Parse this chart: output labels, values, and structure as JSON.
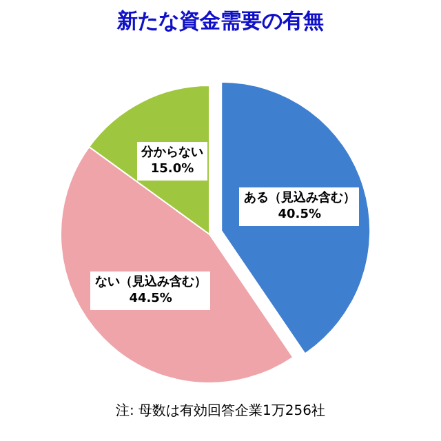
{
  "chart_data": {
    "type": "pie",
    "title": "新たな資金需要の有無",
    "categories": [
      "ある（見込み含む）",
      "ない（見込み含む）",
      "分からない"
    ],
    "values": [
      40.5,
      44.5,
      15.0
    ],
    "value_labels": [
      "40.5%",
      "44.5%",
      "15.0%"
    ],
    "colors": [
      "#3f7fd0",
      "#eea4a8",
      "#9fc63f"
    ],
    "annotations": [
      "注: 母数は有効回答企業1万256社"
    ]
  }
}
